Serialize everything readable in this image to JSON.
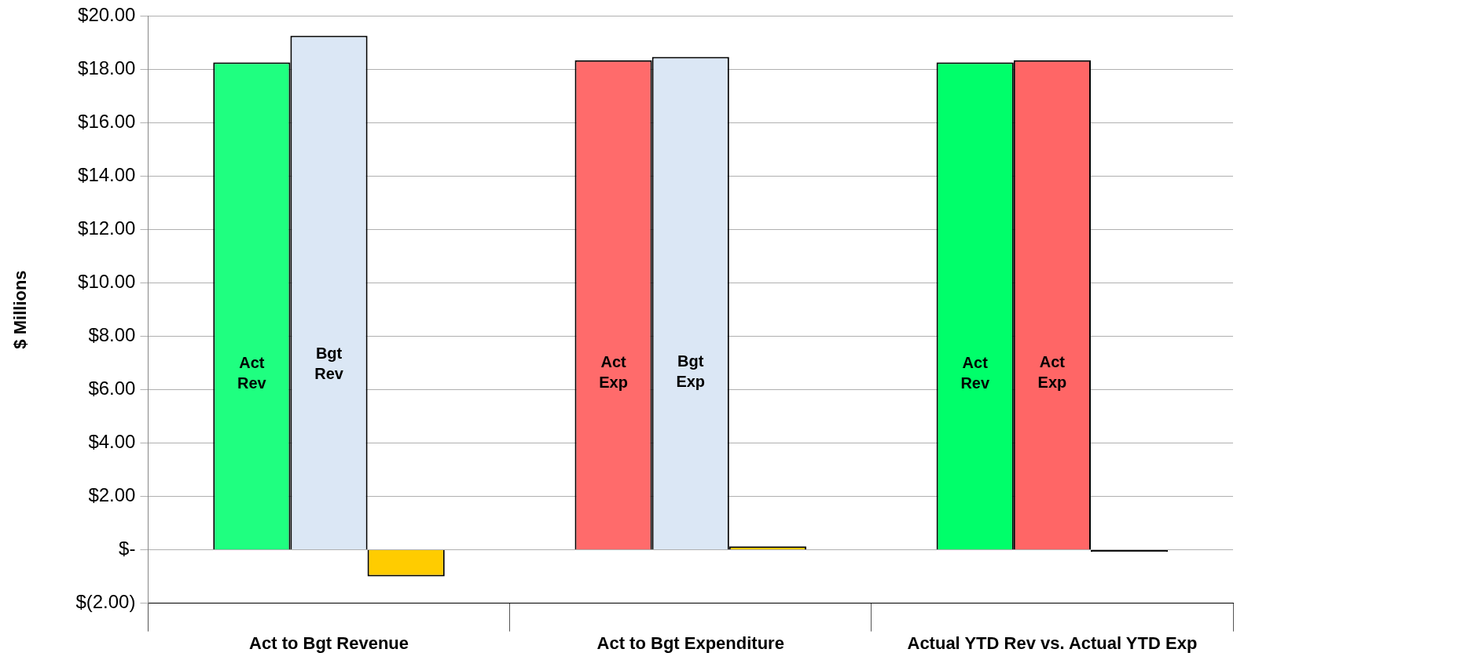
{
  "chart_data": {
    "type": "bar",
    "ylabel": "$ Millions",
    "categories": [
      "Act to Bgt Revenue",
      "Act to Bgt Expenditure",
      "Actual YTD Rev vs. Actual YTD Exp"
    ],
    "series": [
      {
        "colors": [
          "#1fff80",
          "#ff6b6b",
          "#00ff6a"
        ],
        "values": [
          18.26,
          18.34,
          18.26
        ]
      },
      {
        "colors": [
          "#dbe7f5",
          "#dbe7f5",
          "#ff6666"
        ],
        "values": [
          19.26,
          18.47,
          18.34
        ]
      },
      {
        "colors": [
          "#ffcc00",
          "#ffcc00",
          "#000000"
        ],
        "values": [
          -1.0,
          0.13,
          -0.08
        ]
      }
    ],
    "ylim": [
      -2,
      20
    ],
    "yticks": [
      {
        "value": -2,
        "label": "$(2.00)"
      },
      {
        "value": 0,
        "label": "$-"
      },
      {
        "value": 2,
        "label": "$2.00"
      },
      {
        "value": 4,
        "label": "$4.00"
      },
      {
        "value": 6,
        "label": "$6.00"
      },
      {
        "value": 8,
        "label": "$8.00"
      },
      {
        "value": 10,
        "label": "$10.00"
      },
      {
        "value": 12,
        "label": "$12.00"
      },
      {
        "value": 14,
        "label": "$14.00"
      },
      {
        "value": 16,
        "label": "$16.00"
      },
      {
        "value": 18,
        "label": "$18.00"
      },
      {
        "value": 20,
        "label": "$20.00"
      }
    ],
    "grid": "y",
    "legend": false,
    "annotations": [
      "Act Rev",
      "Bgt Rev",
      "Act Exp",
      "Bgt Exp",
      "Act Rev",
      "Act Exp"
    ]
  }
}
